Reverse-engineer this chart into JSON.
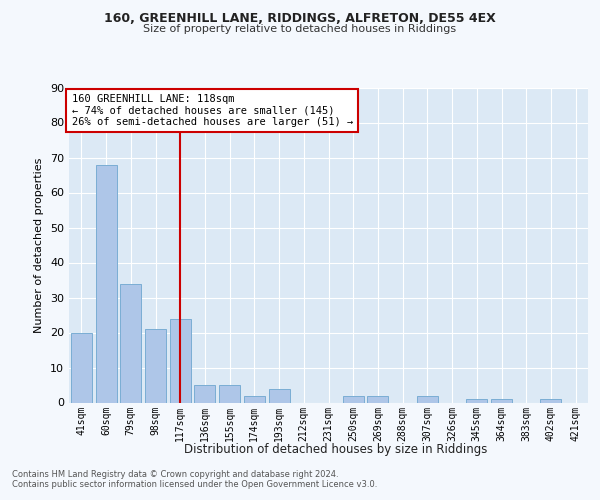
{
  "title1": "160, GREENHILL LANE, RIDDINGS, ALFRETON, DE55 4EX",
  "title2": "Size of property relative to detached houses in Riddings",
  "xlabel": "Distribution of detached houses by size in Riddings",
  "ylabel": "Number of detached properties",
  "footnote1": "Contains HM Land Registry data © Crown copyright and database right 2024.",
  "footnote2": "Contains public sector information licensed under the Open Government Licence v3.0.",
  "categories": [
    "41sqm",
    "60sqm",
    "79sqm",
    "98sqm",
    "117sqm",
    "136sqm",
    "155sqm",
    "174sqm",
    "193sqm",
    "212sqm",
    "231sqm",
    "250sqm",
    "269sqm",
    "288sqm",
    "307sqm",
    "326sqm",
    "345sqm",
    "364sqm",
    "383sqm",
    "402sqm",
    "421sqm"
  ],
  "values": [
    20,
    68,
    34,
    21,
    24,
    5,
    5,
    2,
    4,
    0,
    0,
    2,
    2,
    0,
    2,
    0,
    1,
    1,
    0,
    1,
    0
  ],
  "bar_color": "#aec6e8",
  "bar_edge_color": "#7aadd4",
  "vline_x": 4,
  "vline_color": "#cc0000",
  "annotation_box_text": "160 GREENHILL LANE: 118sqm\n← 74% of detached houses are smaller (145)\n26% of semi-detached houses are larger (51) →",
  "annotation_box_color": "#cc0000",
  "ylim": [
    0,
    90
  ],
  "yticks": [
    0,
    10,
    20,
    30,
    40,
    50,
    60,
    70,
    80,
    90
  ],
  "bg_color": "#dce9f5",
  "fig_bg_color": "#f4f8fd",
  "grid_color": "#ffffff"
}
